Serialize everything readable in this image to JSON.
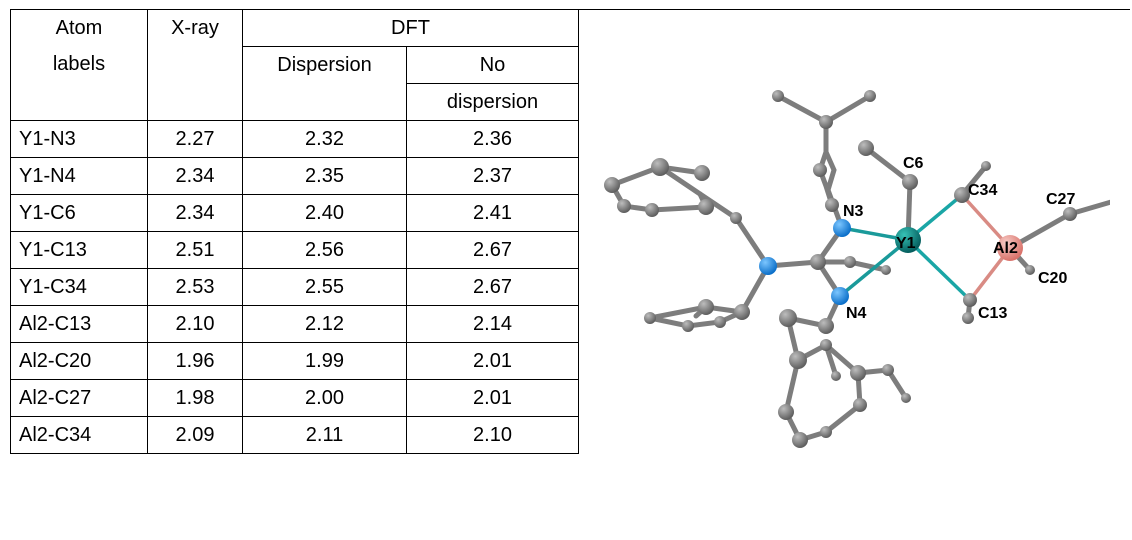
{
  "table": {
    "headers": {
      "atom_line1": "Atom",
      "atom_line2": "labels",
      "xray": "X-ray",
      "dft": "DFT",
      "dispersion": "Dispersion",
      "no_dispersion_line1": "No",
      "no_dispersion_line2": "dispersion"
    },
    "rows": [
      {
        "label": "Y1-N3",
        "xray": "2.27",
        "disp": "2.32",
        "nodisp": "2.36"
      },
      {
        "label": "Y1-N4",
        "xray": "2.34",
        "disp": "2.35",
        "nodisp": "2.37"
      },
      {
        "label": "Y1-C6",
        "xray": "2.34",
        "disp": "2.40",
        "nodisp": "2.41"
      },
      {
        "label": "Y1-C13",
        "xray": "2.51",
        "disp": "2.56",
        "nodisp": "2.67"
      },
      {
        "label": "Y1-C34",
        "xray": "2.53",
        "disp": "2.55",
        "nodisp": "2.67"
      },
      {
        "label": "Al2-C13",
        "xray": "2.10",
        "disp": "2.12",
        "nodisp": "2.14"
      },
      {
        "label": "Al2-C20",
        "xray": "1.96",
        "disp": "1.99",
        "nodisp": "2.01"
      },
      {
        "label": "Al2-C27",
        "xray": "1.98",
        "disp": "2.00",
        "nodisp": "2.01"
      },
      {
        "label": "Al2-C34",
        "xray": "2.09",
        "disp": "2.11",
        "nodisp": "2.10"
      }
    ]
  },
  "structure": {
    "atom_labels": {
      "c6": "C6",
      "n3": "N3",
      "y1": "Y1",
      "c34": "C34",
      "c27": "C27",
      "al2": "Al2",
      "c20": "C20",
      "n4": "N4",
      "c13": "C13"
    },
    "colors": {
      "carbon": "#7a7a7a",
      "nitrogen": "#1f8fe8",
      "yttrium": "#0d8f8f",
      "aluminium": "#e8938c"
    }
  }
}
